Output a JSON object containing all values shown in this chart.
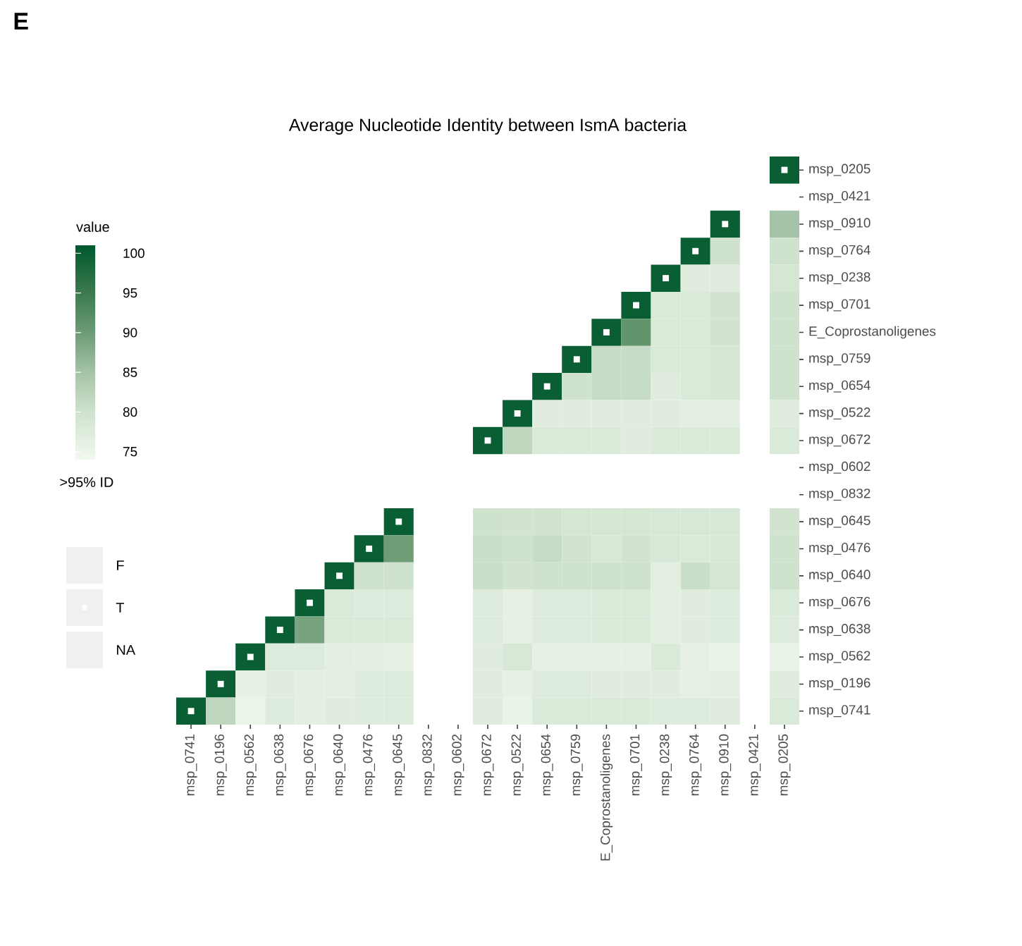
{
  "chart_data": {
    "type": "heatmap",
    "title": "Average Nucleotide Identity between IsmA bacteria",
    "clabel": "value",
    "legend_title": ">95% ID",
    "annotations": [
      "E",
      "F",
      "T",
      "NA"
    ],
    "categories": [
      "msp_0741",
      "msp_0196",
      "msp_0562",
      "msp_0638",
      "msp_0676",
      "msp_0640",
      "msp_0476",
      "msp_0645",
      "msp_0832",
      "msp_0602",
      "msp_0672",
      "msp_0522",
      "msp_0654",
      "msp_0759",
      "E_Coprostanoligenes",
      "msp_0701",
      "msp_0238",
      "msp_0764",
      "msp_0910",
      "msp_0421",
      "msp_0205"
    ],
    "y_categories": [
      "msp_0205",
      "msp_0421",
      "msp_0910",
      "msp_0764",
      "msp_0238",
      "msp_0701",
      "E_Coprostanoligenes",
      "msp_0759",
      "msp_0654",
      "msp_0522",
      "msp_0672",
      "msp_0602",
      "msp_0832",
      "msp_0645",
      "msp_0476",
      "msp_0640",
      "msp_0676",
      "msp_0638",
      "msp_0562",
      "msp_0196",
      "msp_0741"
    ],
    "clim": [
      74,
      101
    ],
    "cticks": [
      75,
      80,
      85,
      90,
      95,
      100
    ],
    "cells": [
      [
        null,
        null,
        null,
        null,
        null,
        null,
        null,
        null,
        null,
        null,
        null,
        null,
        null,
        null,
        null,
        null,
        null,
        null,
        null,
        null,
        100
      ],
      [
        null,
        null,
        null,
        null,
        null,
        null,
        null,
        null,
        null,
        null,
        null,
        null,
        null,
        null,
        null,
        null,
        null,
        null,
        null,
        null,
        null
      ],
      [
        null,
        null,
        null,
        null,
        null,
        null,
        null,
        null,
        null,
        null,
        null,
        null,
        null,
        null,
        null,
        null,
        null,
        null,
        100,
        null,
        85
      ],
      [
        null,
        null,
        null,
        null,
        null,
        null,
        null,
        null,
        null,
        null,
        null,
        null,
        null,
        null,
        null,
        null,
        null,
        100,
        80,
        null,
        80
      ],
      [
        null,
        null,
        null,
        null,
        null,
        null,
        null,
        null,
        null,
        null,
        null,
        null,
        null,
        null,
        null,
        null,
        100,
        77,
        77,
        null,
        79
      ],
      [
        null,
        null,
        null,
        null,
        null,
        null,
        null,
        null,
        null,
        null,
        null,
        null,
        null,
        null,
        null,
        100,
        78,
        78,
        79.5,
        null,
        80
      ],
      [
        null,
        null,
        null,
        null,
        null,
        null,
        null,
        null,
        null,
        null,
        null,
        null,
        null,
        null,
        100,
        91,
        78,
        78,
        79.5,
        null,
        80
      ],
      [
        null,
        null,
        null,
        null,
        null,
        null,
        null,
        null,
        null,
        null,
        null,
        null,
        null,
        100,
        81,
        81,
        78,
        78,
        79,
        null,
        80
      ],
      [
        null,
        null,
        null,
        null,
        null,
        null,
        null,
        null,
        null,
        null,
        null,
        null,
        100,
        80,
        81,
        81,
        77,
        78,
        79,
        null,
        80
      ],
      [
        null,
        null,
        null,
        null,
        null,
        null,
        null,
        null,
        null,
        null,
        null,
        100,
        77,
        77,
        77,
        77,
        77,
        76.5,
        76.5,
        null,
        77
      ],
      [
        null,
        null,
        null,
        null,
        null,
        null,
        null,
        null,
        null,
        null,
        100,
        82,
        78,
        78,
        78,
        77,
        78,
        78,
        78,
        null,
        78
      ],
      [
        null,
        null,
        null,
        null,
        null,
        null,
        null,
        null,
        null,
        null,
        null,
        null,
        null,
        null,
        null,
        null,
        null,
        null,
        null,
        null,
        null
      ],
      [
        null,
        null,
        null,
        null,
        null,
        null,
        null,
        null,
        null,
        null,
        null,
        null,
        null,
        null,
        null,
        null,
        null,
        null,
        null,
        null,
        null
      ],
      [
        null,
        null,
        null,
        null,
        null,
        null,
        null,
        100,
        null,
        null,
        80,
        79.5,
        79.5,
        79,
        79,
        79,
        78.5,
        78.5,
        78.5,
        null,
        79.5
      ],
      [
        null,
        null,
        null,
        null,
        null,
        null,
        100,
        90,
        null,
        null,
        80.5,
        80,
        81,
        79.5,
        78.5,
        79.5,
        78.5,
        78,
        78.5,
        null,
        80
      ],
      [
        null,
        null,
        null,
        null,
        null,
        100,
        80,
        80,
        null,
        null,
        80.5,
        79.5,
        80,
        80,
        80,
        80,
        76.5,
        80.5,
        79,
        null,
        80
      ],
      [
        null,
        null,
        null,
        null,
        100,
        78,
        77.5,
        77.5,
        null,
        null,
        77.5,
        76,
        77.5,
        77.5,
        78,
        78,
        76.5,
        77,
        77.5,
        null,
        78
      ],
      [
        null,
        null,
        null,
        100,
        89,
        78,
        78,
        78,
        null,
        null,
        77.5,
        76,
        77.5,
        77.5,
        78,
        78,
        76.5,
        77,
        77.5,
        null,
        77.5
      ],
      [
        null,
        null,
        100,
        77.5,
        77.5,
        76.5,
        76.5,
        76,
        null,
        null,
        77,
        78.5,
        76,
        76,
        76,
        76,
        78,
        76,
        75.5,
        null,
        75.5
      ],
      [
        null,
        100,
        76,
        77,
        76.5,
        76.5,
        77.5,
        77.5,
        null,
        null,
        77,
        76,
        77.5,
        77.5,
        77,
        77,
        77,
        76,
        76.5,
        null,
        77
      ],
      [
        100,
        82,
        75,
        77.5,
        76.5,
        77,
        77.5,
        77.5,
        null,
        null,
        77,
        75.5,
        78,
        78,
        78,
        78,
        77.5,
        77.5,
        77,
        null,
        78
      ]
    ],
    "cell_labels": [
      [
        null,
        null,
        null,
        null,
        null,
        null,
        null,
        null,
        null,
        null,
        null,
        null,
        null,
        null,
        null,
        null,
        null,
        null,
        null,
        null,
        "▪"
      ],
      [
        null,
        null,
        null,
        null,
        null,
        null,
        null,
        null,
        null,
        null,
        null,
        null,
        null,
        null,
        null,
        null,
        null,
        null,
        null,
        null,
        null
      ],
      [
        null,
        null,
        null,
        null,
        null,
        null,
        null,
        null,
        null,
        null,
        null,
        null,
        null,
        null,
        null,
        null,
        null,
        null,
        "▪",
        null,
        null
      ],
      [
        null,
        null,
        null,
        null,
        null,
        null,
        null,
        null,
        null,
        null,
        null,
        null,
        null,
        null,
        null,
        null,
        null,
        "▪",
        null,
        null,
        null
      ],
      [
        null,
        null,
        null,
        null,
        null,
        null,
        null,
        null,
        null,
        null,
        null,
        null,
        null,
        null,
        null,
        null,
        "▪",
        null,
        null,
        null,
        null
      ],
      [
        null,
        null,
        null,
        null,
        null,
        null,
        null,
        null,
        null,
        null,
        null,
        null,
        null,
        null,
        null,
        "▪",
        null,
        null,
        null,
        null,
        null
      ],
      [
        null,
        null,
        null,
        null,
        null,
        null,
        null,
        null,
        null,
        null,
        null,
        null,
        null,
        null,
        "▪",
        null,
        null,
        null,
        null,
        null,
        null
      ],
      [
        null,
        null,
        null,
        null,
        null,
        null,
        null,
        null,
        null,
        null,
        null,
        null,
        null,
        "▪",
        null,
        null,
        null,
        null,
        null,
        null,
        null
      ],
      [
        null,
        null,
        null,
        null,
        null,
        null,
        null,
        null,
        null,
        null,
        null,
        null,
        "▪",
        null,
        null,
        null,
        null,
        null,
        null,
        null,
        null
      ],
      [
        null,
        null,
        null,
        null,
        null,
        null,
        null,
        null,
        null,
        null,
        null,
        "▪",
        null,
        null,
        null,
        null,
        null,
        null,
        null,
        null,
        null
      ],
      [
        null,
        null,
        null,
        null,
        null,
        null,
        null,
        null,
        null,
        null,
        "▪",
        null,
        null,
        null,
        null,
        null,
        null,
        null,
        null,
        null,
        null
      ],
      [
        null,
        null,
        null,
        null,
        null,
        null,
        null,
        null,
        null,
        null,
        null,
        null,
        null,
        null,
        null,
        null,
        null,
        null,
        null,
        null,
        null
      ],
      [
        null,
        null,
        null,
        null,
        null,
        null,
        null,
        null,
        null,
        null,
        null,
        null,
        null,
        null,
        null,
        null,
        null,
        null,
        null,
        null,
        null
      ],
      [
        null,
        null,
        null,
        null,
        null,
        null,
        null,
        "▪",
        null,
        null,
        null,
        null,
        null,
        null,
        null,
        null,
        null,
        null,
        null,
        null,
        null
      ],
      [
        null,
        null,
        null,
        null,
        null,
        null,
        "▪",
        null,
        null,
        null,
        null,
        null,
        null,
        null,
        null,
        null,
        null,
        null,
        null,
        null,
        null
      ],
      [
        null,
        null,
        null,
        null,
        null,
        "▪",
        null,
        null,
        null,
        null,
        null,
        null,
        null,
        null,
        null,
        null,
        null,
        null,
        null,
        null,
        null
      ],
      [
        null,
        null,
        null,
        null,
        "▪",
        null,
        null,
        null,
        null,
        null,
        null,
        null,
        null,
        null,
        null,
        null,
        null,
        null,
        null,
        null,
        null
      ],
      [
        null,
        null,
        null,
        "▪",
        null,
        null,
        null,
        null,
        null,
        null,
        null,
        null,
        null,
        null,
        null,
        null,
        null,
        null,
        null,
        null,
        null
      ],
      [
        null,
        null,
        "▪",
        null,
        null,
        null,
        null,
        null,
        null,
        null,
        null,
        null,
        null,
        null,
        null,
        null,
        null,
        null,
        null,
        null,
        null
      ],
      [
        null,
        "▪",
        null,
        null,
        null,
        null,
        null,
        null,
        null,
        null,
        null,
        null,
        null,
        null,
        null,
        null,
        null,
        null,
        null,
        null,
        null
      ],
      [
        "▪",
        null,
        null,
        null,
        null,
        null,
        null,
        null,
        null,
        null,
        null,
        null,
        null,
        null,
        null,
        null,
        null,
        null,
        null,
        null,
        null
      ]
    ]
  }
}
